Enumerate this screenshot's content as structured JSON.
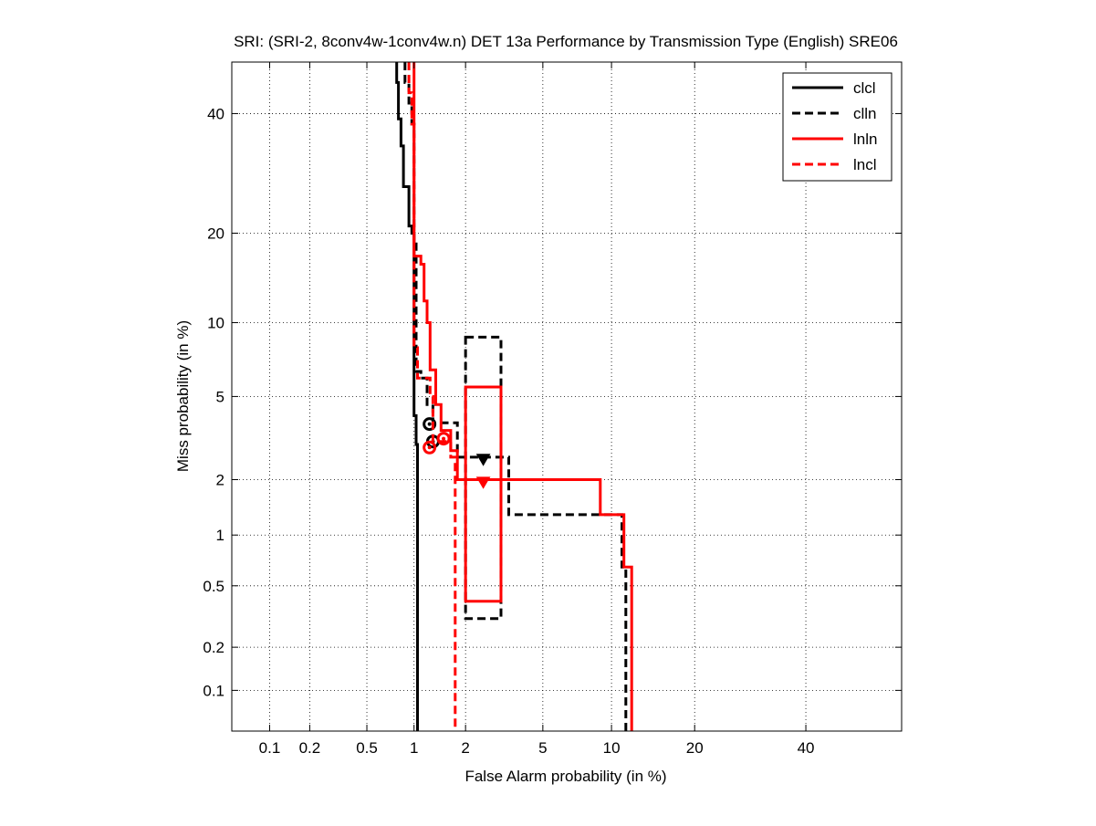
{
  "chart_data": {
    "type": "line",
    "title": "SRI: (SRI-2, 8conv4w-1conv4w.n) DET 13a Performance by Transmission Type (English) SRE06",
    "xlabel": "False Alarm probability (in %)",
    "ylabel": "Miss probability (in %)",
    "x_scale": "probit",
    "y_scale": "probit",
    "xlim": [
      0.05,
      60
    ],
    "ylim": [
      0.05,
      50
    ],
    "x_ticks": [
      0.1,
      0.2,
      0.5,
      1,
      2,
      5,
      10,
      20,
      40
    ],
    "x_tick_labels": [
      "0.1",
      "0.2",
      "0.5",
      "1",
      "2",
      "5",
      "10",
      "20",
      "40"
    ],
    "y_ticks": [
      0.1,
      0.2,
      0.5,
      1,
      2,
      5,
      10,
      20,
      40
    ],
    "y_tick_labels": [
      "0.1",
      "0.2",
      "0.5",
      "1",
      "2",
      "5",
      "10",
      "20",
      "40"
    ],
    "grid": true,
    "legend_position": "top-right",
    "series": [
      {
        "name": "clcl",
        "color": "#000000",
        "dash": "solid",
        "points": [
          [
            0.78,
            50
          ],
          [
            0.78,
            46
          ],
          [
            0.8,
            46
          ],
          [
            0.8,
            39
          ],
          [
            0.83,
            39
          ],
          [
            0.83,
            34
          ],
          [
            0.86,
            34
          ],
          [
            0.86,
            27
          ],
          [
            0.93,
            27
          ],
          [
            0.93,
            21
          ],
          [
            0.97,
            21
          ],
          [
            0.97,
            20
          ],
          [
            1.0,
            20
          ],
          [
            1.0,
            4.1
          ],
          [
            1.03,
            4.1
          ],
          [
            1.03,
            3.0
          ],
          [
            1.05,
            3.0
          ],
          [
            1.05,
            0.05
          ]
        ],
        "min_dcf_marker": [
          1.24,
          3.75
        ],
        "actual_dcf_marker": null,
        "confidence_box": null
      },
      {
        "name": "clln",
        "color": "#000000",
        "dash": "dashed",
        "points": [
          [
            0.88,
            50
          ],
          [
            0.88,
            46
          ],
          [
            0.93,
            46
          ],
          [
            0.93,
            42
          ],
          [
            0.97,
            42
          ],
          [
            0.97,
            38
          ],
          [
            1.0,
            38
          ],
          [
            1.0,
            19
          ],
          [
            1.03,
            19
          ],
          [
            1.03,
            6.4
          ],
          [
            1.1,
            6.4
          ],
          [
            1.1,
            6.0
          ],
          [
            1.2,
            6.0
          ],
          [
            1.2,
            4.6
          ],
          [
            1.3,
            4.6
          ],
          [
            1.3,
            3.8
          ],
          [
            1.8,
            3.8
          ],
          [
            1.8,
            2.6
          ],
          [
            3.4,
            2.6
          ],
          [
            3.4,
            1.3
          ],
          [
            11,
            1.3
          ],
          [
            11,
            0.65
          ],
          [
            11.4,
            0.65
          ],
          [
            11.4,
            0.05
          ]
        ],
        "min_dcf_marker": [
          1.3,
          3.1
        ],
        "actual_dcf_marker": [
          2.5,
          2.55
        ],
        "confidence_box": {
          "x": [
            2.0,
            3.1
          ],
          "y": [
            0.31,
            8.8
          ]
        }
      },
      {
        "name": "lnln",
        "color": "#ff0000",
        "dash": "solid",
        "points": [
          [
            1.0,
            50
          ],
          [
            1.0,
            17
          ],
          [
            1.1,
            17
          ],
          [
            1.1,
            16
          ],
          [
            1.15,
            16
          ],
          [
            1.15,
            12
          ],
          [
            1.2,
            12
          ],
          [
            1.2,
            10
          ],
          [
            1.25,
            10
          ],
          [
            1.25,
            6.5
          ],
          [
            1.35,
            6.5
          ],
          [
            1.35,
            4.6
          ],
          [
            1.45,
            4.6
          ],
          [
            1.45,
            3.5
          ],
          [
            1.65,
            3.5
          ],
          [
            1.65,
            2.8
          ],
          [
            1.8,
            2.8
          ],
          [
            1.8,
            2.0
          ],
          [
            9.0,
            2.0
          ],
          [
            9.0,
            1.3
          ],
          [
            11.2,
            1.3
          ],
          [
            11.2,
            0.65
          ],
          [
            12.0,
            0.65
          ],
          [
            12.0,
            0.05
          ]
        ],
        "min_dcf_marker": [
          1.5,
          3.2
        ],
        "actual_dcf_marker": [
          2.5,
          1.95
        ],
        "confidence_box": {
          "x": [
            2.0,
            3.1
          ],
          "y": [
            0.4,
            5.5
          ]
        }
      },
      {
        "name": "lncl",
        "color": "#ff0000",
        "dash": "dashed",
        "points": [
          [
            0.93,
            50
          ],
          [
            0.93,
            44
          ],
          [
            0.97,
            44
          ],
          [
            0.97,
            38
          ],
          [
            1.0,
            38
          ],
          [
            1.0,
            8.0
          ],
          [
            1.05,
            8.0
          ],
          [
            1.05,
            6.0
          ],
          [
            1.25,
            6.0
          ],
          [
            1.25,
            5.0
          ],
          [
            1.3,
            5.0
          ],
          [
            1.3,
            3.1
          ],
          [
            1.65,
            3.1
          ],
          [
            1.65,
            2.6
          ],
          [
            1.75,
            2.6
          ],
          [
            1.75,
            0.05
          ]
        ],
        "min_dcf_marker": [
          1.24,
          2.9
        ],
        "actual_dcf_marker": null,
        "confidence_box": null
      }
    ]
  }
}
